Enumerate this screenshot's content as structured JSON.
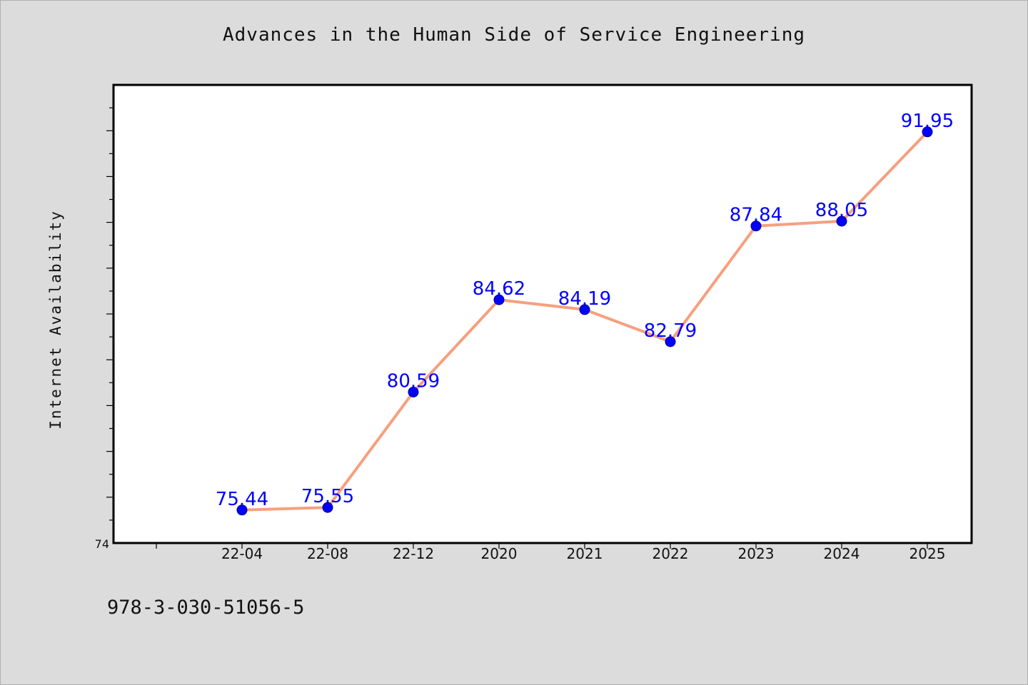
{
  "chart_data": {
    "type": "line",
    "title": "Advances in the Human Side of Service Engineering",
    "xlabel": "",
    "ylabel": "Internet Availability",
    "categories": [
      "22-04",
      "22-08",
      "22-12",
      "2020",
      "2021",
      "2022",
      "2023",
      "2024",
      "2025"
    ],
    "series": [
      {
        "values": [
          75.44,
          75.55,
          80.59,
          84.62,
          84.19,
          82.79,
          87.84,
          88.05,
          91.95
        ]
      }
    ],
    "ylim": [
      74,
      94
    ],
    "y_tick_labels": [
      "74"
    ],
    "grid": false,
    "legend": "none",
    "line_color": "#f5a07f",
    "marker_color": "#0000ff",
    "label_color": "#0000ff"
  },
  "footer": {
    "isbn": "978-3-030-51056-5"
  }
}
